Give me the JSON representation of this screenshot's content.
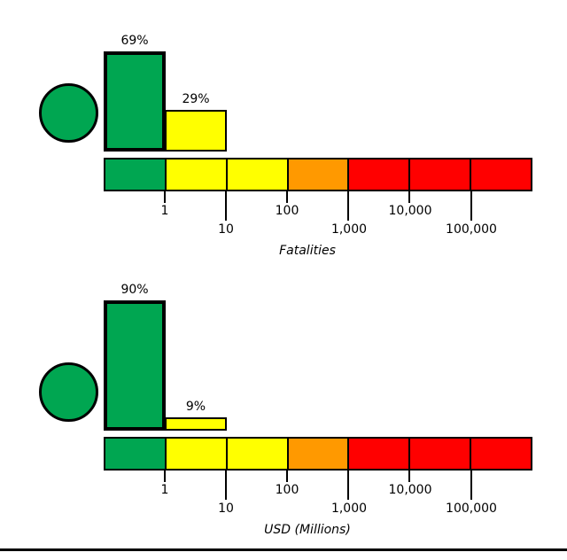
{
  "figure": {
    "background": "#ffffff",
    "description_labels": {
      "top_axis": "Fatalities",
      "bottom_axis": "USD (Millions)"
    }
  },
  "colors": {
    "green": "#00a651",
    "yellow": "#ffff00",
    "orange": "#ff9900",
    "red": "#ff0000",
    "black": "#000000"
  },
  "chart_data": [
    {
      "type": "bar",
      "xlabel": "Fatalities",
      "x_scale": "log",
      "unit": "percent",
      "alert_level": "green",
      "tick_labels": [
        "1",
        "10",
        "100",
        "1,000",
        "10,000",
        "100,000"
      ],
      "bins": [
        {
          "range": "0-1",
          "color": "green",
          "probability_pct": 69,
          "label": "69%"
        },
        {
          "range": "1-10",
          "color": "yellow",
          "probability_pct": 29,
          "label": "29%"
        },
        {
          "range": "10-100",
          "color": "yellow",
          "probability_pct": 0,
          "label": ""
        },
        {
          "range": "100-1,000",
          "color": "orange",
          "probability_pct": 0,
          "label": ""
        },
        {
          "range": "1,000-10,000",
          "color": "red",
          "probability_pct": 0,
          "label": ""
        },
        {
          "range": "10,000-100,000",
          "color": "red",
          "probability_pct": 0,
          "label": ""
        },
        {
          "range": "100,000+",
          "color": "red",
          "probability_pct": 0,
          "label": ""
        }
      ]
    },
    {
      "type": "bar",
      "xlabel": "USD (Millions)",
      "x_scale": "log",
      "unit": "percent",
      "alert_level": "green",
      "tick_labels": [
        "1",
        "10",
        "100",
        "1,000",
        "10,000",
        "100,000"
      ],
      "bins": [
        {
          "range": "0-1",
          "color": "green",
          "probability_pct": 90,
          "label": "90%"
        },
        {
          "range": "1-10",
          "color": "yellow",
          "probability_pct": 9,
          "label": "9%"
        },
        {
          "range": "10-100",
          "color": "yellow",
          "probability_pct": 0,
          "label": ""
        },
        {
          "range": "100-1,000",
          "color": "orange",
          "probability_pct": 0,
          "label": ""
        },
        {
          "range": "1,000-10,000",
          "color": "red",
          "probability_pct": 0,
          "label": ""
        },
        {
          "range": "10,000-100,000",
          "color": "red",
          "probability_pct": 0,
          "label": ""
        },
        {
          "range": "100,000+",
          "color": "red",
          "probability_pct": 0,
          "label": ""
        }
      ]
    }
  ]
}
